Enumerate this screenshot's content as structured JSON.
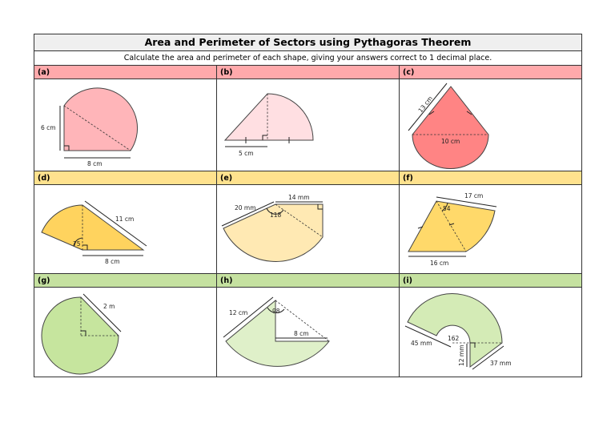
{
  "title": "Area and Perimeter of Sectors using Pythagoras Theorem",
  "instruction": "Calculate the area and perimeter of each shape, giving your answers correct to 1 decimal place.",
  "colors": {
    "row1_label": "#ffa9ab",
    "row2_label": "#ffe28e",
    "row3_label": "#c5e1a0"
  },
  "problems": [
    {
      "label": "(a)",
      "measures": [
        "6 cm",
        "8 cm"
      ],
      "fill": "#ffb5b9"
    },
    {
      "label": "(b)",
      "measures": [
        "5 cm"
      ],
      "fill": "#ffdfe2"
    },
    {
      "label": "(c)",
      "measures": [
        "13 cm",
        "10 cm"
      ],
      "fill": "#ff8484"
    },
    {
      "label": "(d)",
      "measures": [
        "11 cm",
        "8 cm",
        "75"
      ],
      "fill": "#ffd35e"
    },
    {
      "label": "(e)",
      "measures": [
        "20 mm",
        "14 mm",
        "118"
      ],
      "fill": "#ffe9b3"
    },
    {
      "label": "(f)",
      "measures": [
        "17 cm",
        "16 cm",
        "54"
      ],
      "fill": "#ffd96a"
    },
    {
      "label": "(g)",
      "measures": [
        "2 m"
      ],
      "fill": "#c6e59e"
    },
    {
      "label": "(h)",
      "measures": [
        "12 cm",
        "8 cm",
        "98"
      ],
      "fill": "#dff0c9"
    },
    {
      "label": "(i)",
      "measures": [
        "45 mm",
        "162",
        "12 mm",
        "37 mm"
      ],
      "fill": "#d4ebb6"
    }
  ]
}
